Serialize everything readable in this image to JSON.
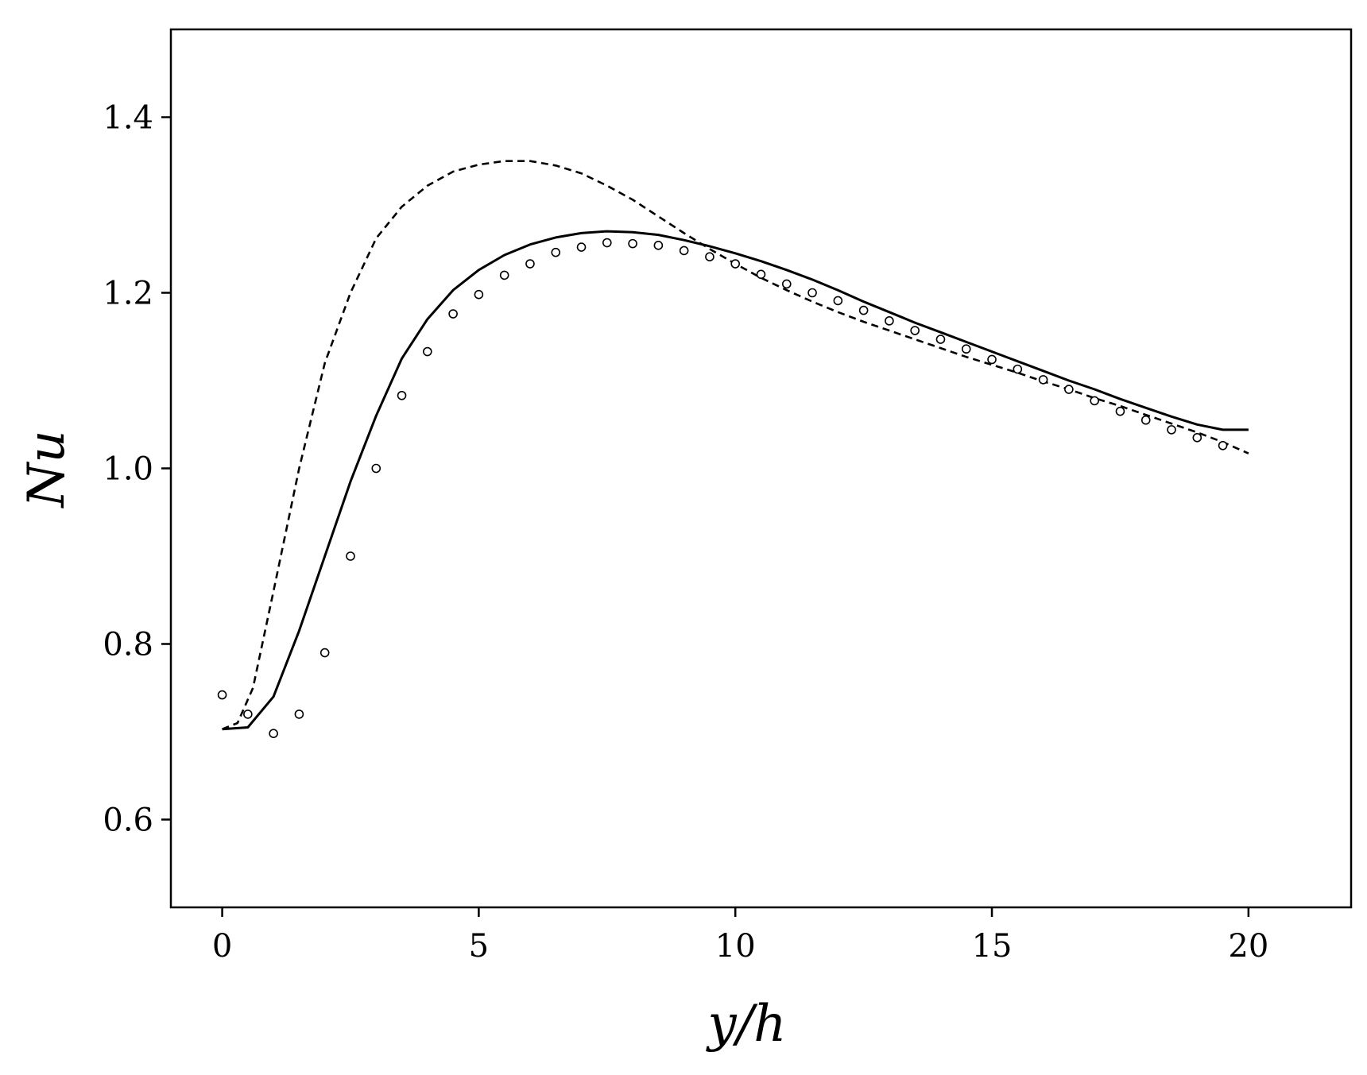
{
  "chart_data": {
    "type": "line",
    "title": "",
    "xlabel": "y/h",
    "ylabel": "Nu",
    "xlim": [
      -1,
      22
    ],
    "ylim": [
      0.5,
      1.5
    ],
    "xticks": [
      0,
      5,
      10,
      15,
      20
    ],
    "xtick_labels": [
      "0",
      "5",
      "10",
      "15",
      "20"
    ],
    "yticks": [
      0.6,
      0.8,
      1.0,
      1.2,
      1.4
    ],
    "ytick_labels": [
      "0.6",
      "0.8",
      "1.0",
      "1.2",
      "1.4"
    ],
    "grid": false,
    "legend": "none",
    "series": [
      {
        "style": "solid",
        "color": "#000000",
        "x": [
          0,
          0.5,
          1,
          1.5,
          2,
          2.5,
          3,
          3.5,
          4,
          4.5,
          5,
          5.5,
          6,
          6.5,
          7,
          7.5,
          8,
          8.5,
          9,
          9.5,
          10,
          10.5,
          11,
          11.5,
          12,
          12.5,
          13,
          13.5,
          14,
          14.5,
          15,
          15.5,
          16,
          16.5,
          17,
          17.5,
          18,
          18.5,
          19,
          19.5,
          20
        ],
        "y": [
          0.703,
          0.705,
          0.74,
          0.815,
          0.9,
          0.985,
          1.06,
          1.125,
          1.17,
          1.203,
          1.226,
          1.243,
          1.255,
          1.263,
          1.268,
          1.27,
          1.269,
          1.266,
          1.26,
          1.253,
          1.245,
          1.236,
          1.226,
          1.215,
          1.203,
          1.19,
          1.178,
          1.166,
          1.155,
          1.144,
          1.133,
          1.122,
          1.111,
          1.1,
          1.09,
          1.079,
          1.069,
          1.059,
          1.05,
          1.044,
          1.044
        ]
      },
      {
        "style": "dashed",
        "color": "#000000",
        "x": [
          0,
          0.3,
          0.6,
          1,
          1.5,
          2,
          2.5,
          3,
          3.5,
          4,
          4.5,
          5,
          5.5,
          6,
          6.5,
          7,
          7.5,
          8,
          8.5,
          9,
          9.5,
          10,
          10.5,
          11,
          11.5,
          12,
          12.5,
          13,
          13.5,
          14,
          14.5,
          15,
          15.5,
          16,
          16.5,
          17,
          17.5,
          18,
          18.5,
          19,
          19.5,
          20
        ],
        "y": [
          0.703,
          0.71,
          0.75,
          0.86,
          1.0,
          1.12,
          1.2,
          1.262,
          1.298,
          1.322,
          1.338,
          1.346,
          1.35,
          1.35,
          1.345,
          1.336,
          1.322,
          1.306,
          1.287,
          1.268,
          1.25,
          1.233,
          1.217,
          1.203,
          1.19,
          1.178,
          1.167,
          1.157,
          1.147,
          1.137,
          1.127,
          1.118,
          1.109,
          1.099,
          1.09,
          1.08,
          1.071,
          1.061,
          1.051,
          1.041,
          1.03,
          1.017
        ]
      },
      {
        "style": "markers",
        "marker": "open-circle",
        "color": "#000000",
        "x": [
          0,
          0.5,
          1,
          1.5,
          2,
          2.5,
          3,
          3.5,
          4,
          4.5,
          5,
          5.5,
          6,
          6.5,
          7,
          7.5,
          8,
          8.5,
          9,
          9.5,
          10,
          10.5,
          11,
          11.5,
          12,
          12.5,
          13,
          13.5,
          14,
          14.5,
          15,
          15.5,
          16,
          16.5,
          17,
          17.5,
          18,
          18.5,
          19,
          19.5
        ],
        "y": [
          0.742,
          0.72,
          0.698,
          0.72,
          0.79,
          0.9,
          1.0,
          1.083,
          1.133,
          1.176,
          1.198,
          1.22,
          1.233,
          1.246,
          1.252,
          1.257,
          1.256,
          1.254,
          1.248,
          1.241,
          1.233,
          1.221,
          1.21,
          1.2,
          1.191,
          1.18,
          1.168,
          1.157,
          1.147,
          1.136,
          1.124,
          1.113,
          1.101,
          1.09,
          1.077,
          1.065,
          1.055,
          1.044,
          1.035,
          1.026
        ]
      }
    ]
  }
}
